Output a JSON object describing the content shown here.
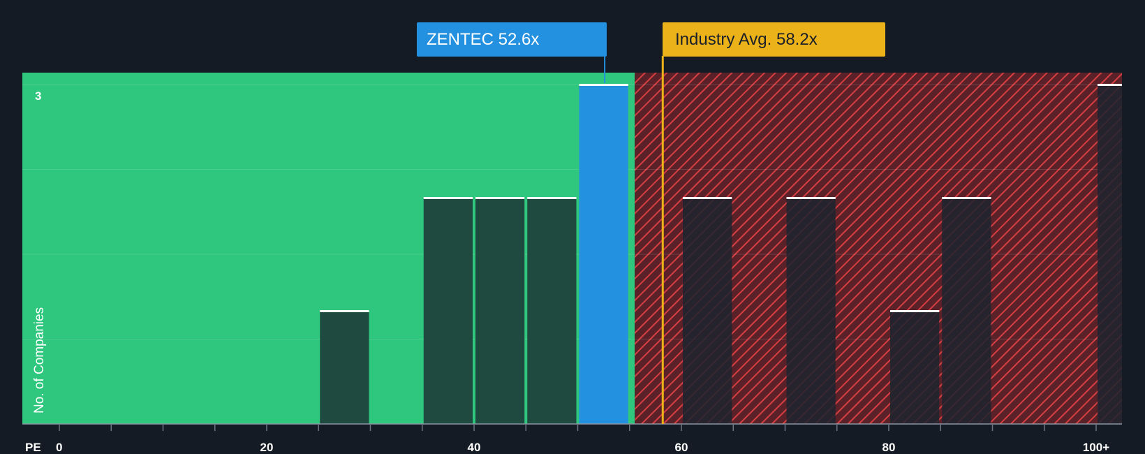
{
  "colors": {
    "background": "#151b24",
    "undervalued_zone": "#2ec77d",
    "overvalued_zone": "#5a2129",
    "overvalued_hatch": "#d63f42",
    "company_bar": "#2391e0",
    "bar_dark_green": "#1f4a3f",
    "bar_dark": "#1c232e",
    "bar_cap": "#ffffff",
    "industry_line": "#ecb219"
  },
  "company": {
    "ticker": "ZENTEC",
    "pe_label": "52.6x",
    "pe": 52.6
  },
  "industry": {
    "label": "Industry Avg.",
    "pe_label": "58.2x",
    "pe": 58.2
  },
  "chart_data": {
    "type": "bar",
    "title": "",
    "xlabel": "PE",
    "ylabel": "No. of Companies",
    "xlim": [
      0,
      102
    ],
    "ylim": [
      0,
      3
    ],
    "undervalued_until": 55.5,
    "x_ticks": [
      {
        "value": 0,
        "label": "0"
      },
      {
        "value": 20,
        "label": "20"
      },
      {
        "value": 40,
        "label": "40"
      },
      {
        "value": 60,
        "label": "60"
      },
      {
        "value": 80,
        "label": "80"
      },
      {
        "value": 100,
        "label": "100+"
      }
    ],
    "y_ticks": [
      {
        "value": 3,
        "label": "3"
      }
    ],
    "bins": [
      {
        "start": 25,
        "end": 30,
        "count": 1
      },
      {
        "start": 35,
        "end": 40,
        "count": 2
      },
      {
        "start": 40,
        "end": 45,
        "count": 2
      },
      {
        "start": 45,
        "end": 50,
        "count": 2
      },
      {
        "start": 50,
        "end": 55,
        "count": 3,
        "highlight": true
      },
      {
        "start": 60,
        "end": 65,
        "count": 2
      },
      {
        "start": 70,
        "end": 75,
        "count": 2
      },
      {
        "start": 80,
        "end": 85,
        "count": 1
      },
      {
        "start": 85,
        "end": 90,
        "count": 2
      },
      {
        "start": 100,
        "end": 105,
        "count": 3
      }
    ]
  }
}
